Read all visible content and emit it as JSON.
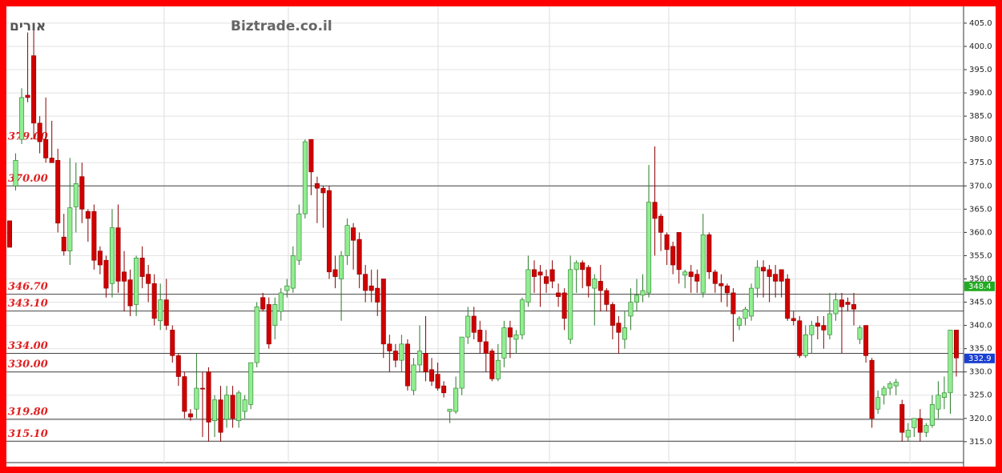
{
  "chart_data": {
    "type": "candlestick",
    "title": "אורים",
    "watermark": "Biztrade.co.il",
    "ylim": [
      310.5,
      408.6
    ],
    "yticks": [
      {
        "value": 315,
        "label": "315.0"
      },
      {
        "value": 320,
        "label": "320.0"
      },
      {
        "value": 325,
        "label": "325.0"
      },
      {
        "value": 330,
        "label": "330.0"
      },
      {
        "value": 335,
        "label": "335.0"
      },
      {
        "value": 340,
        "label": "340.0"
      },
      {
        "value": 345,
        "label": "345.0"
      },
      {
        "value": 350,
        "label": "350.0"
      },
      {
        "value": 355,
        "label": "355.0"
      },
      {
        "value": 360,
        "label": "360.0"
      },
      {
        "value": 365,
        "label": "365.0"
      },
      {
        "value": 370,
        "label": "370.0"
      },
      {
        "value": 375,
        "label": "375.0"
      },
      {
        "value": 380,
        "label": "380.0"
      },
      {
        "value": 385,
        "label": "385.0"
      },
      {
        "value": 390,
        "label": "390.0"
      },
      {
        "value": 395,
        "label": "395.0"
      },
      {
        "value": 400,
        "label": "400.0"
      },
      {
        "value": 405,
        "label": "405.0"
      }
    ],
    "levels": [
      {
        "value": 379,
        "label": "379.00",
        "line": false
      },
      {
        "value": 370,
        "label": "370.00",
        "line": true
      },
      {
        "value": 346.7,
        "label": "346.70",
        "line": true
      },
      {
        "value": 343.1,
        "label": "343.10",
        "line": true
      },
      {
        "value": 334,
        "label": "334.00",
        "line": true
      },
      {
        "value": 330,
        "label": "330.00",
        "line": true
      },
      {
        "value": 319.8,
        "label": "319.80",
        "line": true
      },
      {
        "value": 315.1,
        "label": "315.10",
        "line": true
      }
    ],
    "price_tags": [
      {
        "value": 348.4,
        "color": "#22aa22"
      },
      {
        "value": 332.9,
        "color": "#1a3fd0"
      }
    ],
    "up_color": "#90ee90",
    "down_color": "#d00000",
    "open": [
      362.5,
      370,
      380,
      389.5,
      398,
      383.5,
      380,
      376,
      375.5,
      359,
      356,
      365.5,
      372,
      364.5,
      364.5,
      356,
      354,
      349,
      361,
      351.5,
      349.8,
      344.5,
      354.5,
      351,
      349,
      341,
      345.5,
      339,
      333.5,
      329,
      321,
      322,
      326.5,
      330,
      319.5,
      324,
      319.8,
      325,
      319.5,
      321.5,
      323,
      332,
      346,
      344.5,
      340,
      343,
      347.5,
      348,
      354,
      364,
      380,
      370.5,
      369.5,
      369,
      352,
      350,
      355,
      361,
      358.5,
      351,
      348.5,
      348,
      350,
      336,
      334.5,
      332.5,
      336,
      326,
      331.5,
      334,
      330.5,
      329.5,
      327,
      321.5,
      321.5,
      326.5,
      337.5,
      342,
      339,
      336.5,
      334.5,
      328.5,
      333,
      339.5,
      337,
      338,
      345,
      352,
      351.5,
      350.5,
      352,
      347,
      347,
      337,
      352,
      353.5,
      352.5,
      348,
      349.5,
      347.5,
      344.5,
      340.5,
      337,
      342,
      345,
      346.5,
      347,
      366.5,
      363.5,
      359.5,
      357,
      360,
      350.8,
      351.5,
      351,
      347,
      359.5,
      351.5,
      349,
      348.5,
      347,
      340,
      341.5,
      342,
      348,
      352.5,
      352,
      351,
      352,
      350,
      341.5,
      341,
      333.5,
      338,
      340.5,
      340,
      338,
      342.5,
      345.5,
      345,
      344.5,
      337,
      340,
      332.5,
      322,
      325,
      326.5,
      327,
      323,
      316,
      318,
      320,
      317,
      318.5,
      322,
      324.5,
      325.5,
      339
    ],
    "high": [
      362.5,
      377,
      391,
      403,
      404,
      385,
      389,
      384,
      378,
      364,
      376,
      375,
      375,
      365,
      366,
      357,
      355,
      365,
      366,
      356,
      352,
      355,
      357,
      353,
      351,
      349,
      350,
      340,
      334,
      330,
      322,
      334,
      330,
      331,
      325,
      327,
      327,
      327,
      326,
      325,
      331.5,
      345,
      347,
      346,
      346,
      348,
      350,
      357,
      366,
      380,
      380,
      372,
      370,
      370,
      355,
      356,
      363,
      362,
      360,
      353,
      352,
      352,
      350,
      338,
      336,
      338,
      337,
      333,
      340,
      342,
      333,
      332,
      328,
      322,
      329,
      337.5,
      344,
      344,
      341,
      339,
      335,
      336,
      341,
      341,
      339,
      346,
      355,
      354,
      353,
      352,
      354,
      349,
      348,
      355,
      354,
      354,
      353,
      351,
      353,
      348,
      345,
      342,
      343,
      348,
      350,
      351,
      374.5,
      378.5,
      364,
      360,
      358,
      360,
      352,
      353,
      352,
      364,
      360,
      352,
      351,
      349,
      348,
      342,
      344,
      349,
      354,
      354,
      353,
      353,
      352,
      351,
      343,
      342,
      340,
      341,
      342,
      342,
      347,
      347,
      347,
      346,
      347,
      340,
      340,
      333,
      326,
      327,
      328,
      328.5,
      324,
      319,
      320,
      322,
      319,
      325,
      328,
      329,
      339,
      339
    ],
    "low": [
      356.8,
      369,
      379,
      388,
      380,
      377,
      375,
      375,
      360,
      355,
      353,
      360,
      362,
      358,
      352,
      351,
      346,
      346,
      347,
      343,
      342,
      342,
      348,
      345,
      340,
      339,
      339,
      332,
      327,
      320,
      319.5,
      320,
      316,
      315,
      316,
      315,
      318,
      318,
      318,
      320,
      322,
      331,
      343,
      335,
      337,
      341,
      346,
      347,
      353,
      363,
      368,
      362,
      361,
      350,
      348,
      341,
      353,
      352,
      348,
      345,
      345,
      342,
      333,
      330,
      331,
      330,
      326,
      325,
      330,
      328,
      327,
      326,
      324.5,
      319,
      321,
      325,
      336,
      337,
      334,
      330,
      328,
      328,
      331,
      333,
      334,
      337,
      344,
      347,
      344,
      347,
      348,
      344,
      339,
      336,
      347,
      348,
      346,
      340,
      343,
      343,
      337,
      334,
      335,
      339,
      343,
      345,
      346,
      355,
      356,
      353,
      351,
      349,
      348,
      347,
      347,
      346,
      350,
      347,
      345,
      344,
      336.5,
      339,
      340,
      341,
      346,
      346,
      345,
      346,
      346,
      341,
      340,
      333,
      333,
      334,
      337,
      335,
      337,
      341,
      334,
      343,
      340,
      336,
      332,
      318,
      321,
      323,
      325,
      325,
      315,
      315,
      316,
      315,
      316,
      318,
      320,
      322,
      321,
      329
    ],
    "close": [
      356.8,
      375.5,
      389,
      389,
      383.5,
      379.5,
      376,
      375,
      362,
      356,
      365.3,
      370.5,
      365,
      363,
      354,
      353,
      348,
      361,
      349.5,
      349.5,
      344.2,
      354.5,
      350.5,
      349,
      341.5,
      345.5,
      340,
      333.5,
      329,
      321.5,
      320.3,
      326.5,
      326.3,
      319.2,
      324,
      317,
      325,
      320,
      325.5,
      324,
      332,
      344,
      343.5,
      336,
      344.5,
      347,
      348.5,
      355,
      364,
      379.5,
      373,
      369.5,
      368.5,
      351.5,
      350.5,
      355,
      361.5,
      358.3,
      351,
      347.5,
      347.5,
      345,
      336,
      334.5,
      332.5,
      336,
      327,
      331.5,
      334.5,
      330,
      328,
      326.5,
      325.5,
      322,
      326.5,
      337.5,
      342,
      338.5,
      336.5,
      334,
      328.5,
      332.5,
      339.5,
      337.5,
      338,
      345.5,
      352,
      350.5,
      350.8,
      349,
      349.5,
      346.2,
      341.5,
      352,
      353.5,
      352,
      348.5,
      350,
      347.5,
      344.5,
      340,
      338.5,
      339.5,
      345,
      346.5,
      347.5,
      366.5,
      363,
      360,
      356.3,
      353,
      352,
      351.5,
      350.5,
      349.5,
      359.5,
      351.5,
      349,
      348.5,
      347,
      342.5,
      341.5,
      343.5,
      348,
      352.5,
      351.7,
      350.5,
      349.5,
      349.5,
      341.5,
      341,
      333.5,
      338,
      340,
      339.8,
      339,
      342.5,
      345.5,
      344,
      344.5,
      343.5,
      339.5,
      333.5,
      320,
      324.5,
      326.5,
      327.5,
      327.8,
      317,
      317.5,
      320,
      317,
      318.5,
      323,
      325,
      325.5,
      339,
      333
    ]
  }
}
